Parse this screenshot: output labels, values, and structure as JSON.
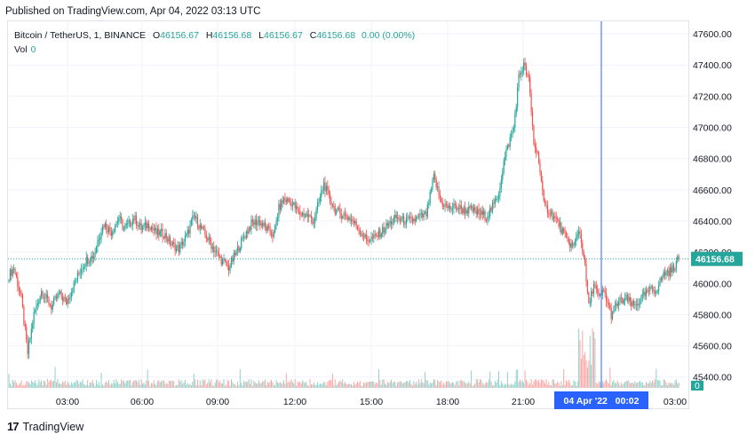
{
  "published_text": "Published on TradingView.com, Apr 04, 2022 03:13 UTC",
  "legend": {
    "symbol": "Bitcoin / TetherUS, 1, BINANCE",
    "o_label": "O",
    "o_value": "46156.67",
    "h_label": "H",
    "h_value": "46156.68",
    "l_label": "L",
    "l_value": "46156.67",
    "c_label": "C",
    "c_value": "46156.68",
    "change": "0.00 (0.00%)"
  },
  "volume": {
    "label": "Vol",
    "value": "0"
  },
  "footer": {
    "logo_mark": "17",
    "brand": "TradingView"
  },
  "colors": {
    "up": "#26a69a",
    "down": "#ef5350",
    "crosshair": "#2962ff",
    "last_price_bg": "#26a69a"
  },
  "chart_data": {
    "type": "candlestick",
    "price_ticks": [
      "47600.00",
      "47400.00",
      "47200.00",
      "47000.00",
      "46800.00",
      "46600.00",
      "46400.00",
      "46200.00",
      "46000.00",
      "45800.00",
      "45600.00",
      "45400.00"
    ],
    "time_ticks": [
      "03:00",
      "06:00",
      "09:00",
      "12:00",
      "15:00",
      "18:00",
      "21:00",
      "03:00"
    ],
    "ylim": [
      45330,
      47680
    ],
    "last_price": "46156.68",
    "crosshair_time": "04 Apr '22   00:02",
    "volume_zero_label": "0",
    "close_path": [
      [
        0,
        46050
      ],
      [
        4,
        46100
      ],
      [
        10,
        45900
      ],
      [
        15,
        45550
      ],
      [
        20,
        45800
      ],
      [
        26,
        45950
      ],
      [
        34,
        45850
      ],
      [
        40,
        45930
      ],
      [
        46,
        45880
      ],
      [
        52,
        45990
      ],
      [
        58,
        46100
      ],
      [
        62,
        46150
      ],
      [
        68,
        46180
      ],
      [
        72,
        46300
      ],
      [
        76,
        46380
      ],
      [
        82,
        46330
      ],
      [
        88,
        46420
      ],
      [
        92,
        46350
      ],
      [
        96,
        46380
      ],
      [
        100,
        46420
      ],
      [
        106,
        46350
      ],
      [
        112,
        46380
      ],
      [
        118,
        46320
      ],
      [
        124,
        46320
      ],
      [
        130,
        46250
      ],
      [
        136,
        46220
      ],
      [
        142,
        46300
      ],
      [
        148,
        46430
      ],
      [
        154,
        46350
      ],
      [
        158,
        46300
      ],
      [
        164,
        46220
      ],
      [
        170,
        46150
      ],
      [
        176,
        46100
      ],
      [
        182,
        46200
      ],
      [
        188,
        46300
      ],
      [
        194,
        46380
      ],
      [
        200,
        46400
      ],
      [
        206,
        46350
      ],
      [
        212,
        46310
      ],
      [
        216,
        46480
      ],
      [
        220,
        46540
      ],
      [
        226,
        46520
      ],
      [
        232,
        46450
      ],
      [
        238,
        46440
      ],
      [
        244,
        46400
      ],
      [
        248,
        46520
      ],
      [
        252,
        46640
      ],
      [
        256,
        46550
      ],
      [
        262,
        46460
      ],
      [
        268,
        46440
      ],
      [
        274,
        46410
      ],
      [
        280,
        46350
      ],
      [
        286,
        46280
      ],
      [
        292,
        46290
      ],
      [
        298,
        46330
      ],
      [
        304,
        46380
      ],
      [
        310,
        46420
      ],
      [
        316,
        46400
      ],
      [
        322,
        46400
      ],
      [
        328,
        46420
      ],
      [
        334,
        46440
      ],
      [
        340,
        46680
      ],
      [
        346,
        46520
      ],
      [
        352,
        46480
      ],
      [
        358,
        46490
      ],
      [
        364,
        46470
      ],
      [
        370,
        46470
      ],
      [
        376,
        46450
      ],
      [
        382,
        46430
      ],
      [
        388,
        46500
      ],
      [
        392,
        46580
      ],
      [
        396,
        46780
      ],
      [
        400,
        46900
      ],
      [
        404,
        47000
      ],
      [
        408,
        47320
      ],
      [
        412,
        47400
      ],
      [
        416,
        47300
      ],
      [
        420,
        46900
      ],
      [
        424,
        46800
      ],
      [
        428,
        46500
      ],
      [
        434,
        46450
      ],
      [
        440,
        46380
      ],
      [
        446,
        46280
      ],
      [
        452,
        46230
      ],
      [
        456,
        46350
      ],
      [
        460,
        46180
      ],
      [
        464,
        45850
      ],
      [
        468,
        46000
      ],
      [
        472,
        45900
      ],
      [
        476,
        45950
      ],
      [
        482,
        45800
      ],
      [
        488,
        45880
      ],
      [
        494,
        45900
      ],
      [
        500,
        45850
      ],
      [
        506,
        45900
      ],
      [
        512,
        45950
      ],
      [
        518,
        45960
      ],
      [
        524,
        46060
      ],
      [
        530,
        46080
      ],
      [
        536,
        46156.68
      ]
    ]
  }
}
